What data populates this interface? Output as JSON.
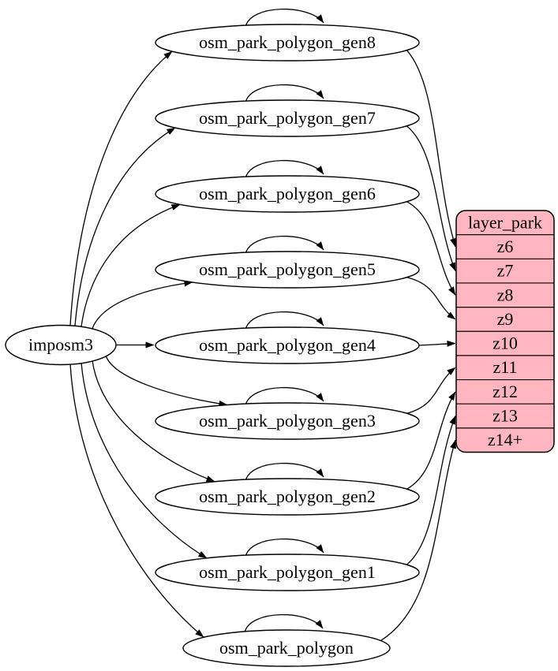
{
  "colors": {
    "background": "#ffffff",
    "stroke": "#000000",
    "node_fill": "#ffffff",
    "layer_fill": "#ffb6c1",
    "text": "#000000"
  },
  "source_node": {
    "label": "imposm3"
  },
  "table_nodes": [
    {
      "label": "osm_park_polygon_gen8",
      "feeds_zoom": "z6",
      "self_loop": true
    },
    {
      "label": "osm_park_polygon_gen7",
      "feeds_zoom": "z7",
      "self_loop": true
    },
    {
      "label": "osm_park_polygon_gen6",
      "feeds_zoom": "z8",
      "self_loop": true
    },
    {
      "label": "osm_park_polygon_gen5",
      "feeds_zoom": "z9",
      "self_loop": true
    },
    {
      "label": "osm_park_polygon_gen4",
      "feeds_zoom": "z10",
      "self_loop": true
    },
    {
      "label": "osm_park_polygon_gen3",
      "feeds_zoom": "z11",
      "self_loop": true
    },
    {
      "label": "osm_park_polygon_gen2",
      "feeds_zoom": "z12",
      "self_loop": true
    },
    {
      "label": "osm_park_polygon_gen1",
      "feeds_zoom": "z13",
      "self_loop": true
    },
    {
      "label": "osm_park_polygon",
      "feeds_zoom": "z14+",
      "self_loop": true
    }
  ],
  "layer_node": {
    "title": "layer_park",
    "rows": [
      "z6",
      "z7",
      "z8",
      "z9",
      "z10",
      "z11",
      "z12",
      "z13",
      "z14+"
    ]
  }
}
